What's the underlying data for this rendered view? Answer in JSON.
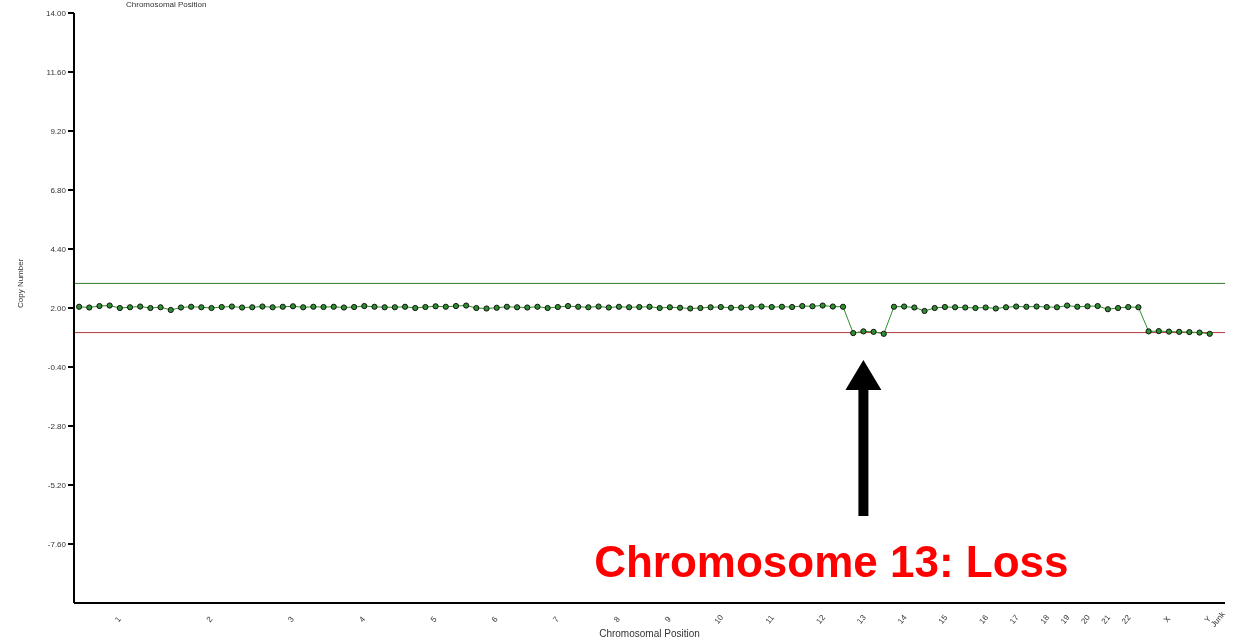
{
  "chart_data": {
    "type": "line",
    "xlabel": "Chromosomal Position",
    "ylabel": "Copy Number",
    "annotations": [
      "Chromosomal Position",
      "Chromosome 13: Loss"
    ],
    "categories": [
      null,
      null,
      null,
      null,
      "1",
      null,
      null,
      null,
      null,
      null,
      null,
      null,
      null,
      "2",
      null,
      null,
      null,
      null,
      null,
      null,
      null,
      "3",
      null,
      null,
      null,
      null,
      null,
      null,
      "4",
      null,
      null,
      null,
      null,
      null,
      null,
      "5",
      null,
      null,
      null,
      null,
      null,
      "6",
      null,
      null,
      null,
      null,
      null,
      "7",
      null,
      null,
      null,
      null,
      null,
      "8",
      null,
      null,
      null,
      null,
      "9",
      null,
      null,
      null,
      null,
      "10",
      null,
      null,
      null,
      null,
      "11",
      null,
      null,
      null,
      null,
      "12",
      null,
      null,
      null,
      "13",
      null,
      null,
      null,
      "14",
      null,
      null,
      null,
      "15",
      null,
      null,
      null,
      "16",
      null,
      null,
      "17",
      null,
      null,
      "18",
      null,
      "19",
      null,
      "20",
      null,
      "21",
      null,
      "22",
      null,
      null,
      null,
      "X",
      null,
      null,
      null,
      "Y",
      "Junk"
    ],
    "ylim": [
      -10,
      14
    ],
    "yticks": [
      {
        "value": -7.6,
        "label": "-7.60"
      },
      {
        "value": -5.2,
        "label": "-5.20"
      },
      {
        "value": -2.8,
        "label": "-2.80"
      },
      {
        "value": -0.4,
        "label": "-0.40"
      },
      {
        "value": 2,
        "label": "2.00"
      },
      {
        "value": 4.4,
        "label": "4.40"
      },
      {
        "value": 6.8,
        "label": "6.80"
      },
      {
        "value": 9.2,
        "label": "9.20"
      },
      {
        "value": 11.6,
        "label": "11.60"
      },
      {
        "value": 14,
        "label": "14.00"
      }
    ],
    "grid": false,
    "legend": false,
    "marker": "circle",
    "line_style": "solid",
    "ref_lines": [
      {
        "axis": "y",
        "value": 3.0,
        "color": "#2e7d32"
      },
      {
        "axis": "y",
        "value": 1.0,
        "color": "#b03a3a"
      }
    ],
    "series": [
      {
        "color": "#2f8f2f",
        "values": [
          2.05,
          2.02,
          2.08,
          2.1,
          2.0,
          2.03,
          2.06,
          2.0,
          2.03,
          1.92,
          2.02,
          2.05,
          2.03,
          2.0,
          2.04,
          2.06,
          2.02,
          2.03,
          2.06,
          2.03,
          2.05,
          2.07,
          2.03,
          2.05,
          2.04,
          2.05,
          2.02,
          2.04,
          2.08,
          2.05,
          2.03,
          2.03,
          2.05,
          2.0,
          2.04,
          2.07,
          2.05,
          2.08,
          2.1,
          2.0,
          1.98,
          2.01,
          2.05,
          2.03,
          2.02,
          2.05,
          2.0,
          2.04,
          2.08,
          2.05,
          2.03,
          2.06,
          2.02,
          2.05,
          2.03,
          2.04,
          2.05,
          2.0,
          2.03,
          2.01,
          1.98,
          2.0,
          2.03,
          2.04,
          2.01,
          2.02,
          2.03,
          2.06,
          2.04,
          2.05,
          2.04,
          2.08,
          2.07,
          2.1,
          2.06,
          2.05,
          0.98,
          1.05,
          1.03,
          0.95,
          2.05,
          2.06,
          2.02,
          1.88,
          2.0,
          2.04,
          2.03,
          2.02,
          2.0,
          2.02,
          1.98,
          2.03,
          2.06,
          2.05,
          2.06,
          2.04,
          2.03,
          2.1,
          2.05,
          2.07,
          2.08,
          1.95,
          2.0,
          2.04,
          2.03,
          1.05,
          1.06,
          1.04,
          1.03,
          1.02,
          1.0,
          0.95,
          null
        ]
      }
    ]
  }
}
